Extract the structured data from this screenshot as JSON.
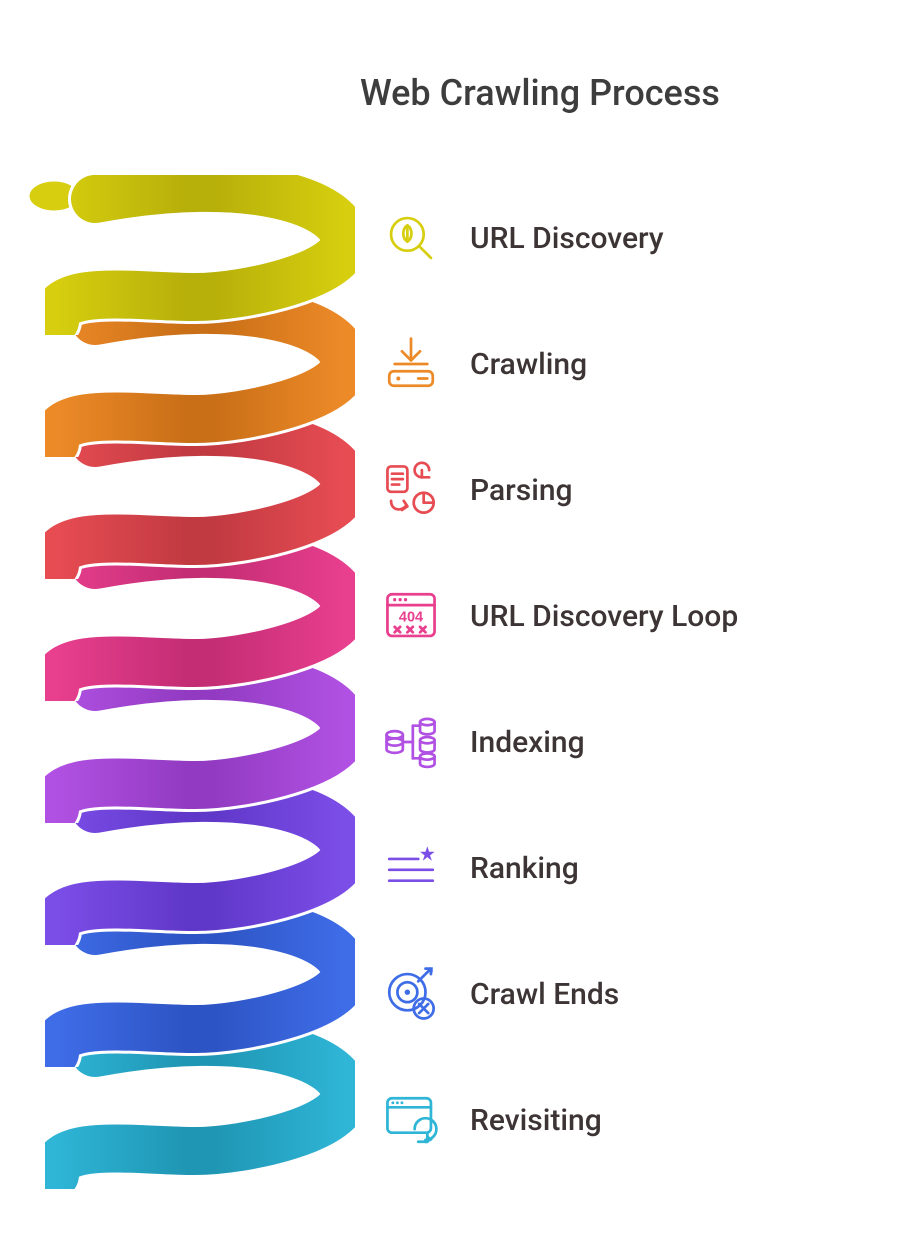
{
  "title": "Web Crawling Process",
  "title_fontsize": 36,
  "title_color": "#3d3d3d",
  "background_color": "#ffffff",
  "label_fontsize": 30,
  "label_color": "#3d3535",
  "spiral": {
    "coil_width": 310,
    "coil_height": 160,
    "coil_spacing": 122,
    "tube_thickness": 48
  },
  "steps": [
    {
      "label": "URL Discovery",
      "color": "#d6ce0e",
      "dark": "#b8b00a",
      "icon": "magnify-leaf-icon"
    },
    {
      "label": "Crawling",
      "color": "#ed8a28",
      "dark": "#c96f17",
      "icon": "download-drive-icon"
    },
    {
      "label": "Parsing",
      "color": "#e74c53",
      "dark": "#c23a41",
      "icon": "doc-chart-icon"
    },
    {
      "label": "URL Discovery Loop",
      "color": "#e83f8e",
      "dark": "#c42d74",
      "icon": "browser-404-icon"
    },
    {
      "label": "Indexing",
      "color": "#b151e3",
      "dark": "#923bc2",
      "icon": "database-tree-icon"
    },
    {
      "label": "Ranking",
      "color": "#7c4ee8",
      "dark": "#6038c9",
      "icon": "rank-lines-icon"
    },
    {
      "label": "Crawl Ends",
      "color": "#3f6de8",
      "dark": "#2d54c4",
      "icon": "target-x-icon"
    },
    {
      "label": "Revisiting",
      "color": "#2fb5d6",
      "dark": "#1f96b4",
      "icon": "browser-reload-icon"
    }
  ]
}
